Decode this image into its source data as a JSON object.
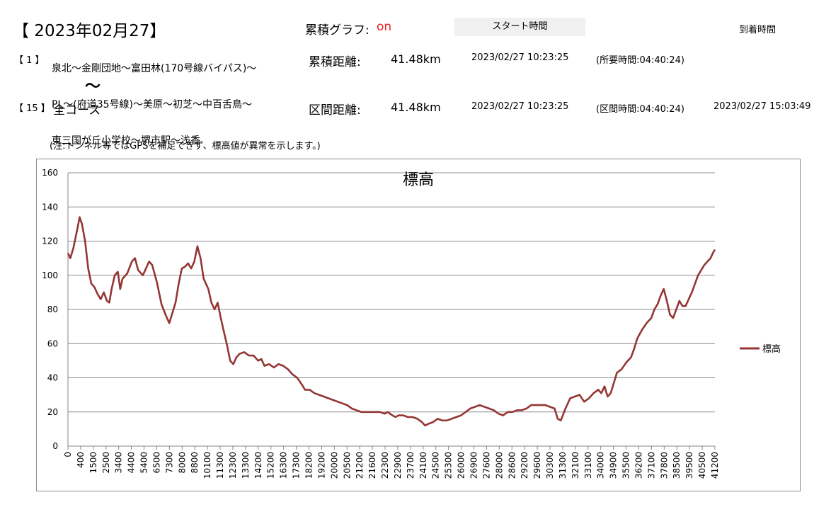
{
  "header": {
    "date_title": "【 2023年02月27】",
    "cumulative_graph_label": "累積グラフ:",
    "cumulative_graph_value": "on",
    "start_time_header": "スタート時間",
    "arrival_time_header": "到着時間"
  },
  "route": {
    "number": "【 1 】",
    "lines": [
      "泉北～金剛団地～富田林(170号線バイパス)～",
      "PL～(府道35号線)～美原～初芝～中百舌鳥～",
      "東三国が丘小学校～堺市駅～浅香"
    ],
    "tilde": "～"
  },
  "course": {
    "number": "【 15 】",
    "name": "全コース"
  },
  "cumulative": {
    "distance_label": "累積距離:",
    "distance_value": "41.48km",
    "start_time": "2023/02/27 10:23:25",
    "duration": "(所要時間:04:40:24)"
  },
  "section": {
    "distance_label": "区間距離:",
    "distance_value": "41.48km",
    "start_time": "2023/02/27 10:23:25",
    "duration": "(区間時間:04:40:24)",
    "arrival_time": "2023/02/27 15:03:49"
  },
  "note": "(注:トンネル等ではGPSを補足できず、標高値が異常を示します。)",
  "chart_data": {
    "type": "line",
    "title": "標高",
    "xlabel": "",
    "ylabel": "",
    "ylim": [
      0,
      160
    ],
    "yticks": [
      0,
      20,
      40,
      60,
      80,
      100,
      120,
      140,
      160
    ],
    "xlim": [
      0,
      41480
    ],
    "x_tick_labels": [
      "0",
      "400",
      "1500",
      "2500",
      "3400",
      "4400",
      "5400",
      "6500",
      "7300",
      "8000",
      "8800",
      "10100",
      "11300",
      "12300",
      "13300",
      "14200",
      "15200",
      "16300",
      "17300",
      "18200",
      "19200",
      "20000",
      "20500",
      "21200",
      "21600",
      "22300",
      "22900",
      "23700",
      "24100",
      "24500",
      "25300",
      "26000",
      "26900",
      "27600",
      "28000",
      "28600",
      "29200",
      "29600",
      "30300",
      "31300",
      "32100",
      "33100",
      "34000",
      "34900",
      "35500",
      "36200",
      "37100",
      "37800",
      "38500",
      "39500",
      "40500",
      "41200"
    ],
    "grid": true,
    "legend_position": "right",
    "color": "#943634",
    "series": [
      {
        "name": "標高",
        "points": [
          [
            0,
            113
          ],
          [
            150,
            110
          ],
          [
            350,
            116
          ],
          [
            600,
            127
          ],
          [
            750,
            134
          ],
          [
            900,
            130
          ],
          [
            1100,
            120
          ],
          [
            1300,
            104
          ],
          [
            1500,
            95
          ],
          [
            1700,
            93
          ],
          [
            1900,
            89
          ],
          [
            2100,
            86
          ],
          [
            2300,
            90
          ],
          [
            2500,
            85
          ],
          [
            2650,
            84
          ],
          [
            2800,
            92
          ],
          [
            3000,
            100
          ],
          [
            3200,
            102
          ],
          [
            3350,
            92
          ],
          [
            3500,
            98
          ],
          [
            3800,
            101
          ],
          [
            4100,
            108
          ],
          [
            4300,
            110
          ],
          [
            4500,
            103
          ],
          [
            4800,
            100
          ],
          [
            5000,
            104
          ],
          [
            5200,
            108
          ],
          [
            5400,
            106
          ],
          [
            5700,
            96
          ],
          [
            6000,
            83
          ],
          [
            6300,
            76
          ],
          [
            6500,
            72
          ],
          [
            6700,
            78
          ],
          [
            6900,
            84
          ],
          [
            7100,
            95
          ],
          [
            7300,
            104
          ],
          [
            7500,
            105
          ],
          [
            7700,
            107
          ],
          [
            7900,
            104
          ],
          [
            8100,
            108
          ],
          [
            8300,
            117
          ],
          [
            8500,
            110
          ],
          [
            8700,
            98
          ],
          [
            9000,
            92
          ],
          [
            9200,
            84
          ],
          [
            9400,
            80
          ],
          [
            9600,
            84
          ],
          [
            9800,
            75
          ],
          [
            10000,
            67
          ],
          [
            10200,
            59
          ],
          [
            10400,
            50
          ],
          [
            10600,
            48
          ],
          [
            10800,
            52
          ],
          [
            11000,
            54
          ],
          [
            11300,
            55
          ],
          [
            11600,
            53
          ],
          [
            11900,
            53
          ],
          [
            12200,
            50
          ],
          [
            12400,
            51
          ],
          [
            12600,
            47
          ],
          [
            12900,
            48
          ],
          [
            13200,
            46
          ],
          [
            13500,
            48
          ],
          [
            13800,
            47
          ],
          [
            14100,
            45
          ],
          [
            14400,
            42
          ],
          [
            14700,
            40
          ],
          [
            15000,
            36
          ],
          [
            15200,
            33
          ],
          [
            15500,
            33
          ],
          [
            15800,
            31
          ],
          [
            16100,
            30
          ],
          [
            16400,
            29
          ],
          [
            16700,
            28
          ],
          [
            17000,
            27
          ],
          [
            17300,
            26
          ],
          [
            17600,
            25
          ],
          [
            17900,
            24
          ],
          [
            18200,
            22
          ],
          [
            18500,
            21
          ],
          [
            18800,
            20
          ],
          [
            19100,
            20
          ],
          [
            19400,
            20
          ],
          [
            19700,
            20
          ],
          [
            20000,
            20
          ],
          [
            20300,
            19
          ],
          [
            20500,
            20
          ],
          [
            20800,
            18
          ],
          [
            21000,
            17
          ],
          [
            21200,
            18
          ],
          [
            21500,
            18
          ],
          [
            21800,
            17
          ],
          [
            22100,
            17
          ],
          [
            22400,
            16
          ],
          [
            22700,
            14
          ],
          [
            22900,
            12
          ],
          [
            23100,
            13
          ],
          [
            23400,
            14
          ],
          [
            23700,
            16
          ],
          [
            24000,
            15
          ],
          [
            24300,
            15
          ],
          [
            24600,
            16
          ],
          [
            24900,
            17
          ],
          [
            25200,
            18
          ],
          [
            25500,
            20
          ],
          [
            25800,
            22
          ],
          [
            26100,
            23
          ],
          [
            26400,
            24
          ],
          [
            26700,
            23
          ],
          [
            27000,
            22
          ],
          [
            27300,
            21
          ],
          [
            27600,
            19
          ],
          [
            27900,
            18
          ],
          [
            28200,
            20
          ],
          [
            28500,
            20
          ],
          [
            28800,
            21
          ],
          [
            29100,
            21
          ],
          [
            29400,
            22
          ],
          [
            29700,
            24
          ],
          [
            30000,
            24
          ],
          [
            30300,
            24
          ],
          [
            30600,
            24
          ],
          [
            30900,
            23
          ],
          [
            31200,
            22
          ],
          [
            31400,
            16
          ],
          [
            31600,
            15
          ],
          [
            31900,
            22
          ],
          [
            32200,
            28
          ],
          [
            32500,
            29
          ],
          [
            32800,
            30
          ],
          [
            33100,
            26
          ],
          [
            33400,
            28
          ],
          [
            33700,
            31
          ],
          [
            34000,
            33
          ],
          [
            34200,
            31
          ],
          [
            34400,
            35
          ],
          [
            34600,
            29
          ],
          [
            34800,
            31
          ],
          [
            35000,
            37
          ],
          [
            35200,
            43
          ],
          [
            35500,
            45
          ],
          [
            35800,
            49
          ],
          [
            36100,
            52
          ],
          [
            36300,
            57
          ],
          [
            36500,
            63
          ],
          [
            36800,
            68
          ],
          [
            37100,
            72
          ],
          [
            37400,
            75
          ],
          [
            37600,
            80
          ],
          [
            37800,
            83
          ],
          [
            38000,
            88
          ],
          [
            38200,
            92
          ],
          [
            38400,
            85
          ],
          [
            38600,
            77
          ],
          [
            38800,
            75
          ],
          [
            39000,
            80
          ],
          [
            39200,
            85
          ],
          [
            39400,
            82
          ],
          [
            39600,
            82
          ],
          [
            39800,
            86
          ],
          [
            40000,
            90
          ],
          [
            40200,
            95
          ],
          [
            40400,
            100
          ],
          [
            40600,
            103
          ],
          [
            40800,
            106
          ],
          [
            41000,
            108
          ],
          [
            41200,
            110
          ],
          [
            41350,
            113
          ],
          [
            41480,
            115
          ]
        ]
      }
    ]
  }
}
